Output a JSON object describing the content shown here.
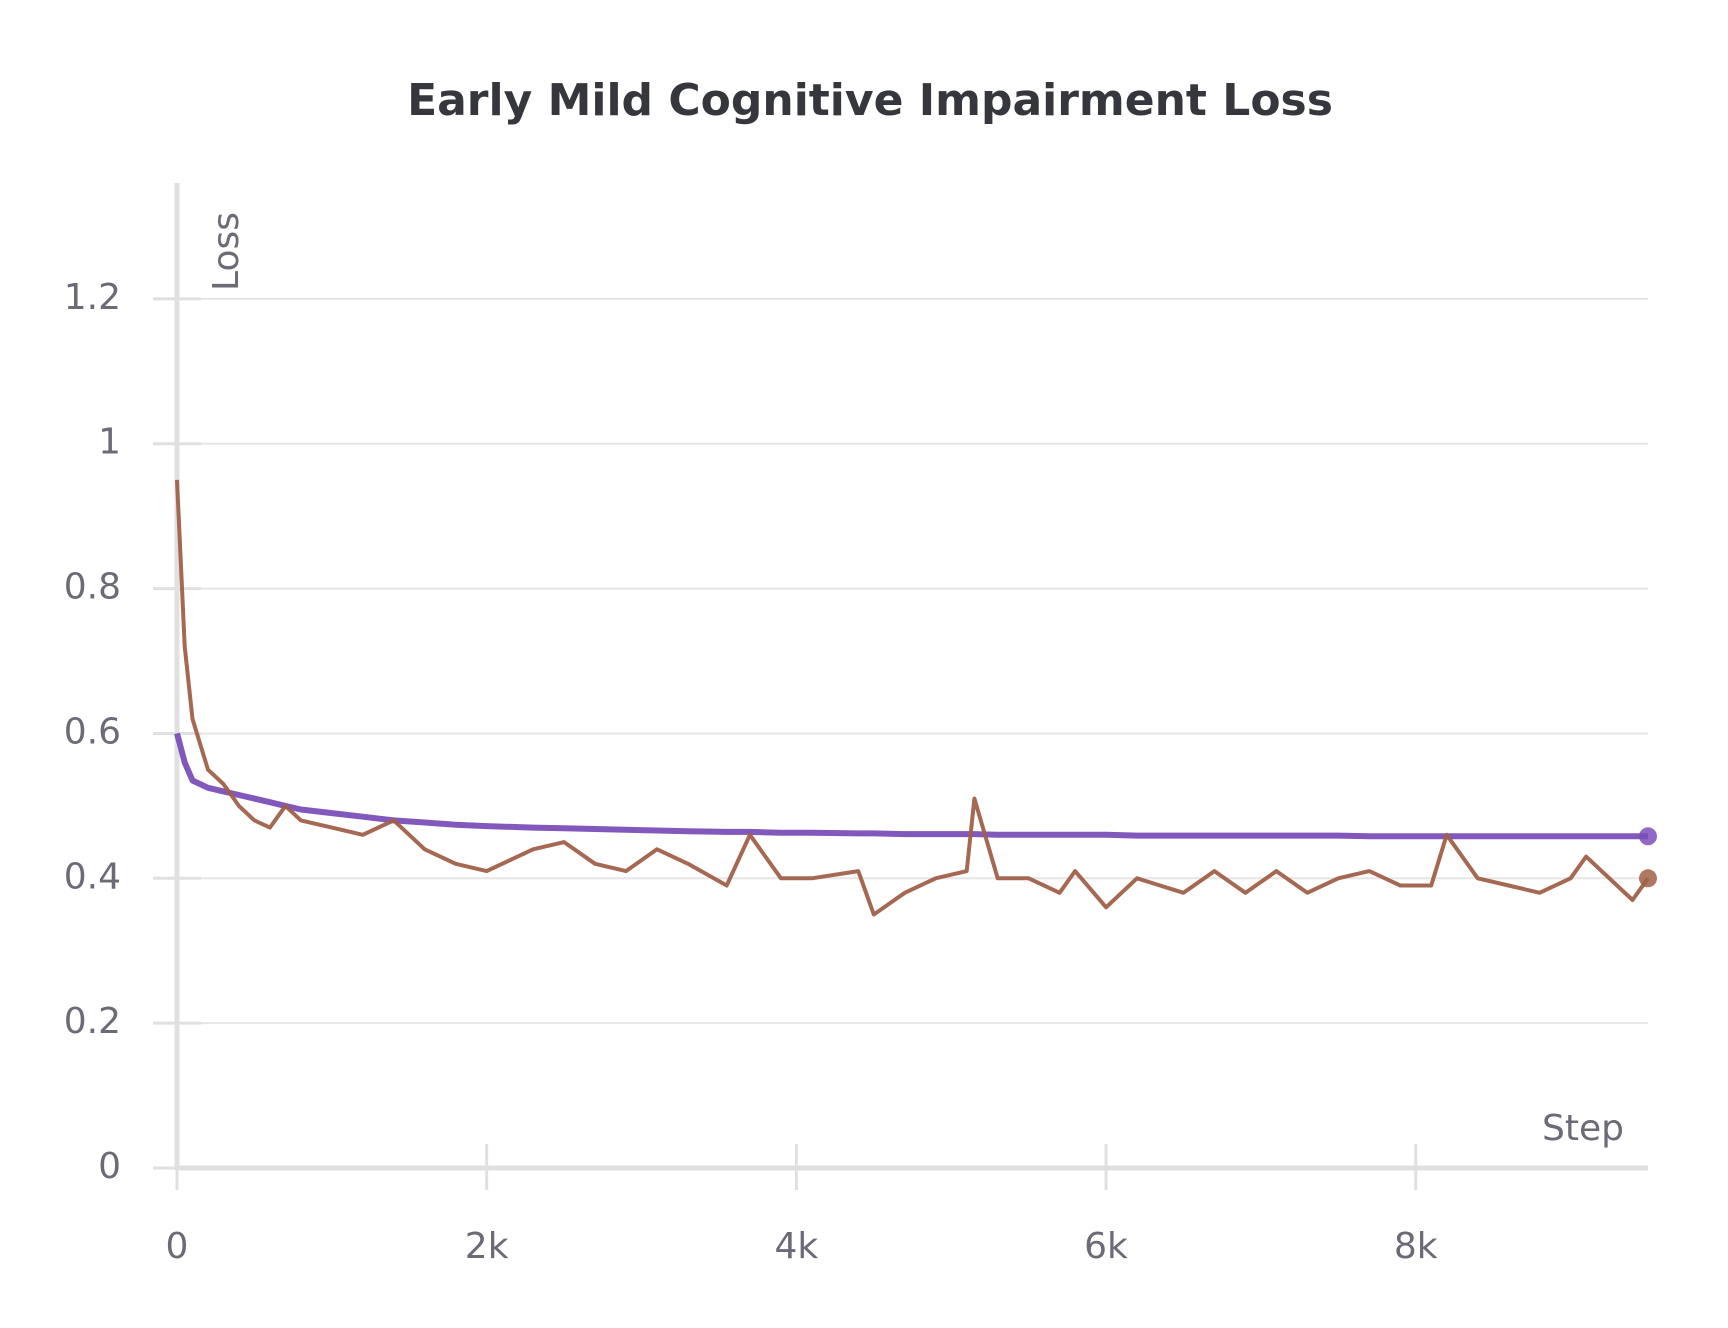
{
  "chart_data": {
    "type": "line",
    "title": "Early Mild Cognitive Impairment Loss",
    "x_label": "Step",
    "y_label": "Loss",
    "x": [
      0,
      50,
      100,
      200,
      300,
      400,
      500,
      600,
      700,
      800,
      1000,
      1200,
      1400,
      1600,
      1800,
      2000,
      2300,
      2500,
      2700,
      2900,
      3100,
      3300,
      3550,
      3700,
      3900,
      4100,
      4400,
      4500,
      4700,
      4900,
      5100,
      5150,
      5300,
      5500,
      5700,
      5800,
      6000,
      6200,
      6500,
      6700,
      6900,
      7100,
      7300,
      7500,
      7700,
      7900,
      8100,
      8200,
      8400,
      8600,
      8800,
      9000,
      9100,
      9300,
      9400,
      9500
    ],
    "series": [
      {
        "color": "#7b4fb8",
        "values": [
          0.6,
          0.56,
          0.535,
          0.525,
          0.52,
          0.515,
          0.51,
          0.505,
          0.5,
          0.495,
          0.49,
          0.485,
          0.48,
          0.477,
          0.474,
          0.472,
          0.47,
          0.469,
          0.468,
          0.467,
          0.466,
          0.465,
          0.464,
          0.464,
          0.463,
          0.463,
          0.462,
          0.462,
          0.461,
          0.461,
          0.461,
          0.461,
          0.46,
          0.46,
          0.46,
          0.46,
          0.46,
          0.459,
          0.459,
          0.459,
          0.459,
          0.459,
          0.459,
          0.459,
          0.458,
          0.458,
          0.458,
          0.458,
          0.458,
          0.458,
          0.458,
          0.458,
          0.458,
          0.458,
          0.458,
          0.458
        ]
      },
      {
        "color": "#a0604a",
        "values": [
          0.95,
          0.72,
          0.62,
          0.55,
          0.53,
          0.5,
          0.48,
          0.47,
          0.5,
          0.48,
          0.47,
          0.46,
          0.48,
          0.44,
          0.42,
          0.41,
          0.44,
          0.45,
          0.42,
          0.41,
          0.44,
          0.42,
          0.39,
          0.46,
          0.4,
          0.4,
          0.41,
          0.35,
          0.38,
          0.4,
          0.41,
          0.51,
          0.4,
          0.4,
          0.38,
          0.41,
          0.36,
          0.4,
          0.38,
          0.41,
          0.38,
          0.41,
          0.38,
          0.4,
          0.41,
          0.39,
          0.39,
          0.46,
          0.4,
          0.39,
          0.38,
          0.4,
          0.43,
          0.39,
          0.37,
          0.4
        ]
      }
    ],
    "xlim": [
      0,
      9500
    ],
    "xticks": [
      0,
      {
        "value": 2000,
        "label": "2k"
      },
      {
        "value": 4000,
        "label": "4k"
      },
      {
        "value": 6000,
        "label": "6k"
      },
      {
        "value": 8000,
        "label": "8k"
      }
    ],
    "ylim": [
      0,
      1.36
    ],
    "yticks": [
      0,
      0.2,
      0.4,
      0.6,
      0.8,
      1,
      1.2
    ],
    "grid": true
  }
}
